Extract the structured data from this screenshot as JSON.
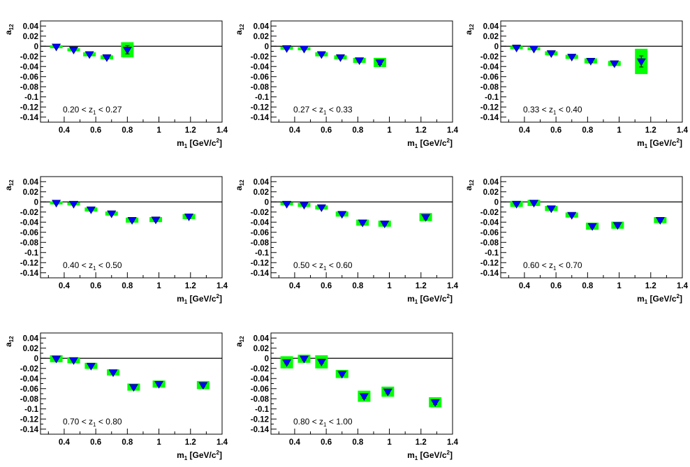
{
  "figure": {
    "ylabel_main": "a",
    "ylabel_sub": "12",
    "xlabel_main": "m",
    "xlabel_sub": "1",
    "xlabel_unit_pre": " [GeV/c",
    "xlabel_unit_sup": "2",
    "xlabel_unit_post": "]",
    "bin_var": "z",
    "bin_var_sub": "1",
    "colors": {
      "marker": "#0000ff",
      "marker_edge": "#000066",
      "band": "#00ff00",
      "axis": "#000000"
    }
  },
  "chart_data": [
    {
      "type": "scatter",
      "panel": 1,
      "bin_low": "0.20",
      "bin_high": "0.27",
      "xlim": [
        0.25,
        1.4
      ],
      "ylim": [
        -0.15,
        0.05
      ],
      "x_ticks": [
        "0.4",
        "0.6",
        "0.8",
        "1",
        "1.2",
        "1.4"
      ],
      "y_ticks": [
        "0.04",
        "0.02",
        "0",
        "-0.02",
        "-0.04",
        "-0.06",
        "-0.08",
        "-0.1",
        "-0.12",
        "-0.14"
      ],
      "points": [
        {
          "x": 0.35,
          "y": -0.001,
          "err": 0.002,
          "sys": 0.003
        },
        {
          "x": 0.46,
          "y": -0.007,
          "err": 0.002,
          "sys": 0.003
        },
        {
          "x": 0.56,
          "y": -0.016,
          "err": 0.002,
          "sys": 0.004
        },
        {
          "x": 0.67,
          "y": -0.022,
          "err": 0.003,
          "sys": 0.004
        },
        {
          "x": 0.8,
          "y": -0.007,
          "err": 0.008,
          "sys": 0.015
        }
      ]
    },
    {
      "type": "scatter",
      "panel": 2,
      "bin_low": "0.27",
      "bin_high": "0.33",
      "xlim": [
        0.25,
        1.4
      ],
      "ylim": [
        -0.15,
        0.05
      ],
      "x_ticks": [
        "0.4",
        "0.6",
        "0.8",
        "1",
        "1.2",
        "1.4"
      ],
      "y_ticks": [
        "0.04",
        "0.02",
        "0",
        "-0.02",
        "-0.04",
        "-0.06",
        "-0.08",
        "-0.1",
        "-0.12",
        "-0.14"
      ],
      "points": [
        {
          "x": 0.35,
          "y": -0.004,
          "err": 0.002,
          "sys": 0.003
        },
        {
          "x": 0.46,
          "y": -0.005,
          "err": 0.002,
          "sys": 0.003
        },
        {
          "x": 0.57,
          "y": -0.016,
          "err": 0.002,
          "sys": 0.004
        },
        {
          "x": 0.69,
          "y": -0.022,
          "err": 0.002,
          "sys": 0.004
        },
        {
          "x": 0.81,
          "y": -0.028,
          "err": 0.003,
          "sys": 0.005
        },
        {
          "x": 0.94,
          "y": -0.032,
          "err": 0.004,
          "sys": 0.009
        }
      ]
    },
    {
      "type": "scatter",
      "panel": 3,
      "bin_low": "0.33",
      "bin_high": "0.40",
      "xlim": [
        0.25,
        1.4
      ],
      "ylim": [
        -0.15,
        0.05
      ],
      "x_ticks": [
        "0.4",
        "0.6",
        "0.8",
        "1",
        "1.2",
        "1.4"
      ],
      "y_ticks": [
        "0.04",
        "0.02",
        "0",
        "-0.02",
        "-0.04",
        "-0.06",
        "-0.08",
        "-0.1",
        "-0.12",
        "-0.14"
      ],
      "points": [
        {
          "x": 0.35,
          "y": -0.003,
          "err": 0.002,
          "sys": 0.003
        },
        {
          "x": 0.46,
          "y": -0.005,
          "err": 0.002,
          "sys": 0.003
        },
        {
          "x": 0.57,
          "y": -0.014,
          "err": 0.002,
          "sys": 0.004
        },
        {
          "x": 0.7,
          "y": -0.021,
          "err": 0.002,
          "sys": 0.004
        },
        {
          "x": 0.82,
          "y": -0.029,
          "err": 0.003,
          "sys": 0.005
        },
        {
          "x": 0.97,
          "y": -0.034,
          "err": 0.003,
          "sys": 0.005
        },
        {
          "x": 1.14,
          "y": -0.03,
          "err": 0.011,
          "sys": 0.025
        }
      ]
    },
    {
      "type": "scatter",
      "panel": 4,
      "bin_low": "0.40",
      "bin_high": "0.50",
      "xlim": [
        0.25,
        1.4
      ],
      "ylim": [
        -0.15,
        0.05
      ],
      "x_ticks": [
        "0.4",
        "0.6",
        "0.8",
        "1",
        "1.2",
        "1.4"
      ],
      "y_ticks": [
        "0.04",
        "0.02",
        "0",
        "-0.02",
        "-0.04",
        "-0.06",
        "-0.08",
        "-0.1",
        "-0.12",
        "-0.14"
      ],
      "points": [
        {
          "x": 0.35,
          "y": -0.002,
          "err": 0.002,
          "sys": 0.003
        },
        {
          "x": 0.46,
          "y": -0.004,
          "err": 0.002,
          "sys": 0.003
        },
        {
          "x": 0.57,
          "y": -0.015,
          "err": 0.002,
          "sys": 0.004
        },
        {
          "x": 0.7,
          "y": -0.023,
          "err": 0.002,
          "sys": 0.004
        },
        {
          "x": 0.83,
          "y": -0.036,
          "err": 0.003,
          "sys": 0.005
        },
        {
          "x": 0.98,
          "y": -0.035,
          "err": 0.003,
          "sys": 0.005
        },
        {
          "x": 1.19,
          "y": -0.029,
          "err": 0.003,
          "sys": 0.005
        }
      ]
    },
    {
      "type": "scatter",
      "panel": 5,
      "bin_low": "0.50",
      "bin_high": "0.60",
      "xlim": [
        0.25,
        1.4
      ],
      "ylim": [
        -0.15,
        0.05
      ],
      "x_ticks": [
        "0.4",
        "0.6",
        "0.8",
        "1",
        "1.2",
        "1.4"
      ],
      "y_ticks": [
        "0.04",
        "0.02",
        "0",
        "-0.02",
        "-0.04",
        "-0.06",
        "-0.08",
        "-0.1",
        "-0.12",
        "-0.14"
      ],
      "points": [
        {
          "x": 0.35,
          "y": -0.004,
          "err": 0.002,
          "sys": 0.003
        },
        {
          "x": 0.46,
          "y": -0.006,
          "err": 0.002,
          "sys": 0.004
        },
        {
          "x": 0.57,
          "y": -0.011,
          "err": 0.002,
          "sys": 0.004
        },
        {
          "x": 0.7,
          "y": -0.024,
          "err": 0.002,
          "sys": 0.005
        },
        {
          "x": 0.83,
          "y": -0.041,
          "err": 0.003,
          "sys": 0.006
        },
        {
          "x": 0.97,
          "y": -0.043,
          "err": 0.003,
          "sys": 0.006
        },
        {
          "x": 1.23,
          "y": -0.03,
          "err": 0.004,
          "sys": 0.008
        }
      ]
    },
    {
      "type": "scatter",
      "panel": 6,
      "bin_low": "0.60",
      "bin_high": "0.70",
      "xlim": [
        0.25,
        1.4
      ],
      "ylim": [
        -0.15,
        0.05
      ],
      "x_ticks": [
        "0.4",
        "0.6",
        "0.8",
        "1",
        "1.2",
        "1.4"
      ],
      "y_ticks": [
        "0.04",
        "0.02",
        "0",
        "-0.02",
        "-0.04",
        "-0.06",
        "-0.08",
        "-0.1",
        "-0.12",
        "-0.14"
      ],
      "points": [
        {
          "x": 0.35,
          "y": -0.004,
          "err": 0.002,
          "sys": 0.006
        },
        {
          "x": 0.46,
          "y": -0.002,
          "err": 0.002,
          "sys": 0.006
        },
        {
          "x": 0.57,
          "y": -0.013,
          "err": 0.002,
          "sys": 0.005
        },
        {
          "x": 0.7,
          "y": -0.026,
          "err": 0.002,
          "sys": 0.005
        },
        {
          "x": 0.83,
          "y": -0.048,
          "err": 0.003,
          "sys": 0.007
        },
        {
          "x": 0.99,
          "y": -0.046,
          "err": 0.003,
          "sys": 0.007
        },
        {
          "x": 1.26,
          "y": -0.036,
          "err": 0.003,
          "sys": 0.006
        }
      ]
    },
    {
      "type": "scatter",
      "panel": 7,
      "bin_low": "0.70",
      "bin_high": "0.80",
      "xlim": [
        0.25,
        1.4
      ],
      "ylim": [
        -0.15,
        0.05
      ],
      "x_ticks": [
        "0.4",
        "0.6",
        "0.8",
        "1",
        "1.2",
        "1.4"
      ],
      "y_ticks": [
        "0.04",
        "0.02",
        "0",
        "-0.02",
        "-0.04",
        "-0.06",
        "-0.08",
        "-0.1",
        "-0.12",
        "-0.14"
      ],
      "points": [
        {
          "x": 0.35,
          "y": -0.001,
          "err": 0.002,
          "sys": 0.007
        },
        {
          "x": 0.46,
          "y": -0.004,
          "err": 0.002,
          "sys": 0.006
        },
        {
          "x": 0.57,
          "y": -0.015,
          "err": 0.002,
          "sys": 0.006
        },
        {
          "x": 0.71,
          "y": -0.028,
          "err": 0.002,
          "sys": 0.006
        },
        {
          "x": 0.84,
          "y": -0.057,
          "err": 0.003,
          "sys": 0.007
        },
        {
          "x": 1.0,
          "y": -0.051,
          "err": 0.003,
          "sys": 0.007
        },
        {
          "x": 1.28,
          "y": -0.053,
          "err": 0.003,
          "sys": 0.008
        }
      ]
    },
    {
      "type": "scatter",
      "panel": 8,
      "bin_low": "0.80",
      "bin_high": "1.00",
      "xlim": [
        0.25,
        1.4
      ],
      "ylim": [
        -0.15,
        0.05
      ],
      "x_ticks": [
        "0.4",
        "0.6",
        "0.8",
        "1",
        "1.2",
        "1.4"
      ],
      "y_ticks": [
        "0.04",
        "0.02",
        "0",
        "-0.02",
        "-0.04",
        "-0.06",
        "-0.08",
        "-0.1",
        "-0.12",
        "-0.14"
      ],
      "points": [
        {
          "x": 0.35,
          "y": -0.008,
          "err": 0.003,
          "sys": 0.012
        },
        {
          "x": 0.46,
          "y": -0.001,
          "err": 0.003,
          "sys": 0.008
        },
        {
          "x": 0.57,
          "y": -0.007,
          "err": 0.003,
          "sys": 0.013
        },
        {
          "x": 0.7,
          "y": -0.031,
          "err": 0.003,
          "sys": 0.008
        },
        {
          "x": 0.84,
          "y": -0.075,
          "err": 0.004,
          "sys": 0.011
        },
        {
          "x": 0.99,
          "y": -0.066,
          "err": 0.004,
          "sys": 0.01
        },
        {
          "x": 1.29,
          "y": -0.087,
          "err": 0.004,
          "sys": 0.01
        }
      ]
    }
  ]
}
